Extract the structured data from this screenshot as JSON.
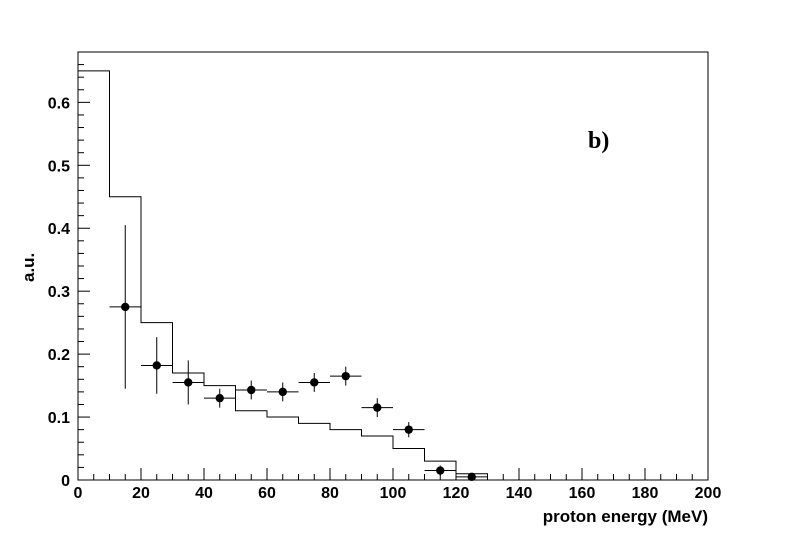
{
  "chart_data": {
    "type": "scatter",
    "title": "",
    "panel_label": "b)",
    "xlabel": "proton energy (MeV)",
    "ylabel": "a.u.",
    "xlim": [
      0,
      200
    ],
    "ylim": [
      0,
      0.68
    ],
    "x_ticks": [
      0,
      20,
      40,
      60,
      80,
      100,
      120,
      140,
      160,
      180,
      200
    ],
    "y_ticks": [
      0,
      0.1,
      0.2,
      0.3,
      0.4,
      0.5,
      0.6
    ],
    "y_tick_labels": [
      "0",
      "0.1",
      "0.2",
      "0.3",
      "0.4",
      "0.5",
      "0.6"
    ],
    "grid": false,
    "legend": "none",
    "series": [
      {
        "kind": "histogram-step",
        "bin_edges": [
          0,
          10,
          20,
          30,
          40,
          50,
          60,
          70,
          80,
          90,
          100,
          110,
          120,
          130
        ],
        "values": [
          0.65,
          0.45,
          0.25,
          0.17,
          0.15,
          0.11,
          0.1,
          0.09,
          0.08,
          0.07,
          0.05,
          0.03,
          0.01
        ]
      },
      {
        "kind": "points-with-errors",
        "x": [
          15,
          25,
          35,
          45,
          55,
          65,
          75,
          85,
          95,
          105,
          115,
          125
        ],
        "y": [
          0.275,
          0.182,
          0.155,
          0.13,
          0.143,
          0.14,
          0.155,
          0.165,
          0.115,
          0.08,
          0.015,
          0.005
        ],
        "xerr": [
          5,
          5,
          5,
          5,
          5,
          5,
          5,
          5,
          5,
          5,
          5,
          5
        ],
        "yerr": [
          0.13,
          0.045,
          0.035,
          0.015,
          0.015,
          0.015,
          0.015,
          0.015,
          0.015,
          0.012,
          0.008,
          0.004
        ]
      }
    ]
  }
}
